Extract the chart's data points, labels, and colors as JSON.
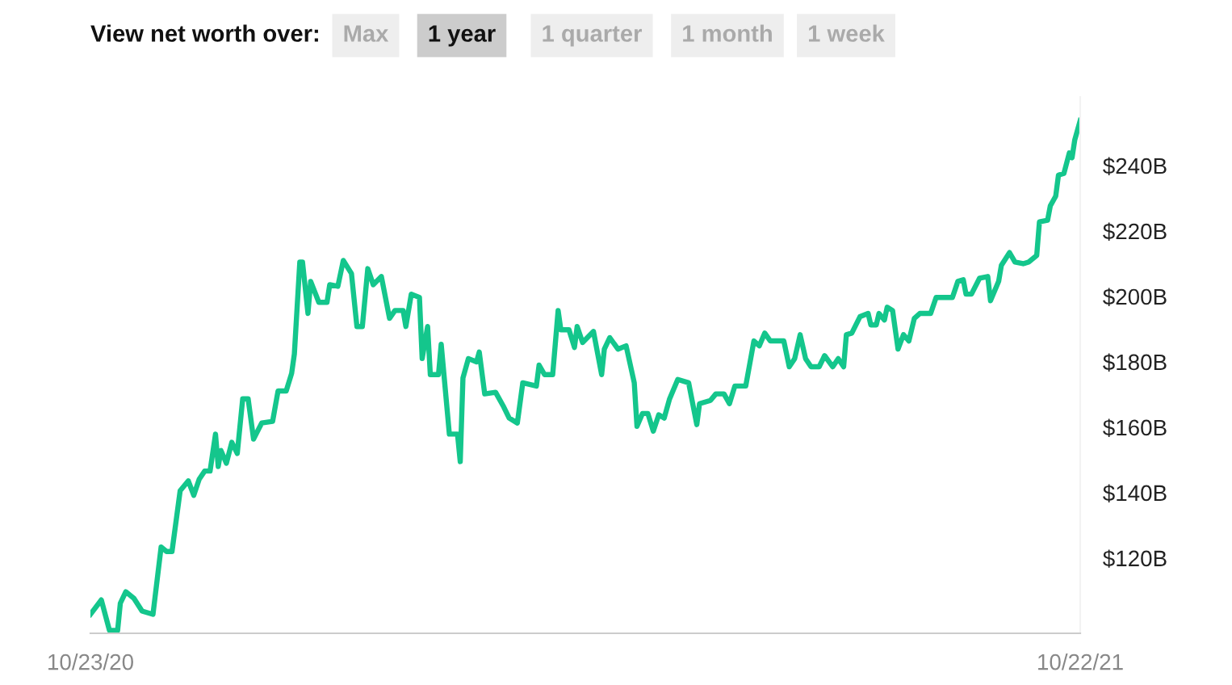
{
  "chart_data": {
    "type": "line",
    "subtitle": "View net worth over:",
    "annotations": [
      "Max",
      "1 year",
      "1 quarter",
      "1 month",
      "1 week"
    ],
    "x": [
      "2020-10-23",
      "2020-10-27",
      "2020-10-30",
      "2020-11-02",
      "2020-11-03",
      "2020-11-05",
      "2020-11-08",
      "2020-11-11",
      "2020-11-15",
      "2020-11-18",
      "2020-11-20",
      "2020-11-22",
      "2020-11-25",
      "2020-11-28",
      "2020-11-30",
      "2020-12-02",
      "2020-12-04",
      "2020-12-06",
      "2020-12-08",
      "2020-12-09",
      "2020-12-10",
      "2020-12-12",
      "2020-12-14",
      "2020-12-16",
      "2020-12-18",
      "2020-12-20",
      "2020-12-22",
      "2020-12-25",
      "2020-12-29",
      "2020-12-31",
      "2021-01-03",
      "2021-01-05",
      "2021-01-06",
      "2021-01-08",
      "2021-01-09",
      "2021-01-11",
      "2021-01-12",
      "2021-01-15",
      "2021-01-18",
      "2021-01-19",
      "2021-01-22",
      "2021-01-24",
      "2021-01-27",
      "2021-01-29",
      "2021-01-31",
      "2021-02-02",
      "2021-02-04",
      "2021-02-07",
      "2021-02-10",
      "2021-02-12",
      "2021-02-15",
      "2021-02-16",
      "2021-02-18",
      "2021-02-21",
      "2021-02-22",
      "2021-02-24",
      "2021-02-25",
      "2021-02-28",
      "2021-03-01",
      "2021-03-04",
      "2021-03-07",
      "2021-03-08",
      "2021-03-09",
      "2021-03-11",
      "2021-03-14",
      "2021-03-15",
      "2021-03-17",
      "2021-03-21",
      "2021-03-24",
      "2021-03-26",
      "2021-03-29",
      "2021-03-31",
      "2021-04-05",
      "2021-04-06",
      "2021-04-08",
      "2021-04-11",
      "2021-04-13",
      "2021-04-14",
      "2021-04-17",
      "2021-04-19",
      "2021-04-20",
      "2021-04-22",
      "2021-04-26",
      "2021-04-29",
      "2021-04-30",
      "2021-05-02",
      "2021-05-05",
      "2021-05-08",
      "2021-05-11",
      "2021-05-12",
      "2021-05-14",
      "2021-05-16",
      "2021-05-18",
      "2021-05-20",
      "2021-05-22",
      "2021-05-24",
      "2021-05-27",
      "2021-05-31",
      "2021-06-03",
      "2021-06-04",
      "2021-06-08",
      "2021-06-10",
      "2021-06-13",
      "2021-06-15",
      "2021-06-17",
      "2021-06-21",
      "2021-06-24",
      "2021-06-26",
      "2021-06-28",
      "2021-06-30",
      "2021-07-05",
      "2021-07-07",
      "2021-07-09",
      "2021-07-11",
      "2021-07-13",
      "2021-07-15",
      "2021-07-18",
      "2021-07-20",
      "2021-07-23",
      "2021-07-25",
      "2021-07-27",
      "2021-07-28",
      "2021-07-30",
      "2021-08-02",
      "2021-08-05",
      "2021-08-06",
      "2021-08-08",
      "2021-08-09",
      "2021-08-11",
      "2021-08-12",
      "2021-08-14",
      "2021-08-16",
      "2021-08-18",
      "2021-08-20",
      "2021-08-22",
      "2021-08-24",
      "2021-08-28",
      "2021-08-30",
      "2021-09-01",
      "2021-09-05",
      "2021-09-07",
      "2021-09-09",
      "2021-09-10",
      "2021-09-12",
      "2021-09-15",
      "2021-09-18",
      "2021-09-19",
      "2021-09-22",
      "2021-09-23",
      "2021-09-26",
      "2021-09-28",
      "2021-10-01",
      "2021-10-03",
      "2021-10-06",
      "2021-10-07",
      "2021-10-10",
      "2021-10-11",
      "2021-10-13",
      "2021-10-14",
      "2021-10-16",
      "2021-10-18",
      "2021-10-19",
      "2021-10-20",
      "2021-10-22"
    ],
    "series": [
      {
        "color": "#14c68c",
        "values": [
          102.8,
          107.2,
          97.9,
          97.9,
          106.2,
          109.7,
          107.7,
          103.8,
          102.8,
          123.4,
          122.0,
          122.0,
          140.6,
          143.6,
          139.2,
          144.1,
          146.6,
          146.6,
          157.9,
          148.0,
          152.9,
          149.0,
          155.4,
          152.0,
          168.7,
          168.7,
          156.4,
          161.3,
          161.8,
          171.1,
          171.1,
          176.5,
          182.4,
          210.5,
          210.5,
          194.8,
          204.6,
          198.2,
          198.2,
          203.6,
          203.1,
          211.0,
          207.0,
          190.8,
          190.8,
          208.5,
          203.6,
          206.1,
          193.3,
          195.7,
          195.7,
          190.8,
          200.7,
          199.7,
          181.0,
          190.8,
          176.1,
          176.1,
          185.4,
          157.9,
          157.9,
          149.5,
          175.1,
          181.0,
          180.0,
          183.0,
          170.2,
          170.7,
          166.2,
          162.8,
          161.3,
          173.6,
          172.6,
          179.0,
          176.1,
          176.1,
          195.7,
          189.8,
          189.8,
          184.4,
          190.8,
          185.9,
          189.3,
          176.1,
          183.9,
          187.4,
          183.9,
          184.9,
          173.6,
          160.3,
          164.2,
          164.2,
          158.8,
          163.8,
          162.8,
          168.7,
          174.6,
          173.6,
          160.8,
          167.2,
          168.2,
          170.2,
          170.2,
          167.2,
          172.6,
          172.6,
          186.4,
          184.9,
          188.8,
          186.4,
          186.4,
          178.5,
          181.0,
          188.3,
          181.0,
          178.5,
          178.5,
          181.9,
          178.5,
          181.0,
          178.5,
          188.3,
          188.8,
          193.8,
          194.8,
          191.3,
          191.3,
          194.8,
          192.8,
          196.7,
          195.7,
          183.9,
          188.3,
          186.4,
          193.3,
          194.8,
          194.8,
          199.7,
          199.7,
          199.7,
          204.6,
          205.1,
          200.7,
          200.7,
          205.6,
          206.1,
          198.7,
          204.6,
          209.5,
          213.4,
          210.5,
          210.0,
          210.5,
          212.5,
          222.8,
          223.3,
          227.7,
          230.7,
          237.1,
          237.6,
          243.9,
          242.4,
          247.9,
          253.8
        ]
      }
    ],
    "xlim": [
      "2020-10-23",
      "2021-10-22"
    ],
    "xticks": [
      {
        "value": "2020-10-23",
        "label": "10/23/20"
      },
      {
        "value": "2021-10-22",
        "label": "10/22/21"
      }
    ],
    "ylim": [
      97,
      261
    ],
    "yticks": [
      {
        "value": 120,
        "label": "$120B"
      },
      {
        "value": 140,
        "label": "$140B"
      },
      {
        "value": 160,
        "label": "$160B"
      },
      {
        "value": 180,
        "label": "$180B"
      },
      {
        "value": 200,
        "label": "$200B"
      },
      {
        "value": 220,
        "label": "$220B"
      },
      {
        "value": 240,
        "label": "$240B"
      }
    ],
    "grid": false,
    "legend": false,
    "marker": "none",
    "line_style": "solid"
  }
}
